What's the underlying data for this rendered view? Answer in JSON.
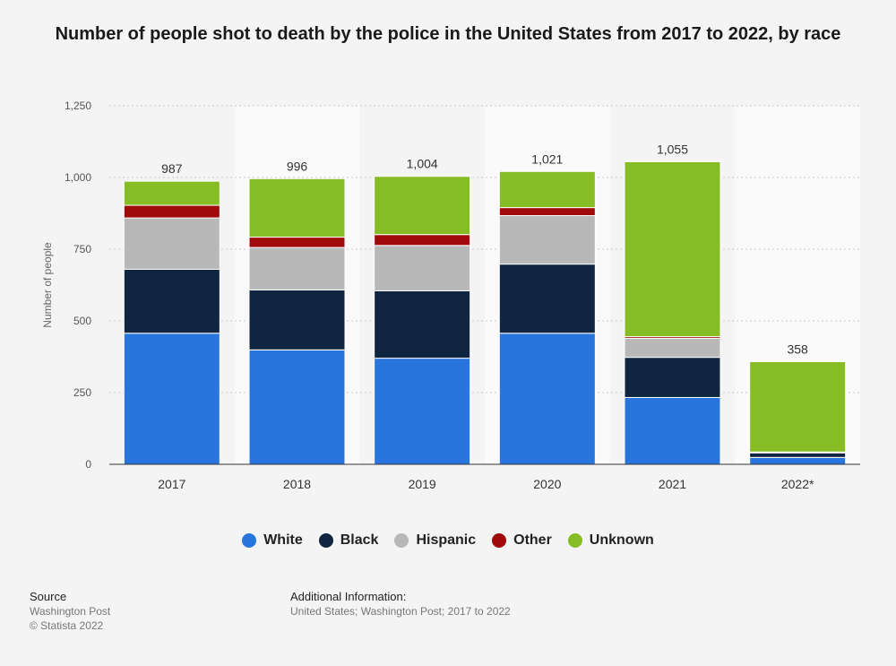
{
  "title": "Number of people shot to death by the police in the United States from 2017 to 2022, by race",
  "chart_data": {
    "type": "bar",
    "stacked": true,
    "title": "Number of people shot to death by the police in the United States from 2017 to 2022, by race",
    "xlabel": "",
    "ylabel": "Number of people",
    "ylim": [
      0,
      1250
    ],
    "yticks": [
      0,
      250,
      500,
      750,
      1000,
      1250
    ],
    "ytick_labels": [
      "0",
      "250",
      "500",
      "750",
      "1,000",
      "1,250"
    ],
    "grid": true,
    "legend_position": "bottom",
    "categories": [
      "2017",
      "2018",
      "2019",
      "2020",
      "2021",
      "2022*"
    ],
    "totals": [
      987,
      996,
      1004,
      1021,
      1055,
      358
    ],
    "total_labels": [
      "987",
      "996",
      "1,004",
      "1,021",
      "1,055",
      "358"
    ],
    "series": [
      {
        "name": "White",
        "color": "#2876dd",
        "values": [
          457,
          399,
          370,
          457,
          233,
          24
        ]
      },
      {
        "name": "Black",
        "color": "#10253f",
        "values": [
          223,
          209,
          235,
          241,
          140,
          16
        ]
      },
      {
        "name": "Hispanic",
        "color": "#b8b8b8",
        "values": [
          179,
          148,
          158,
          169,
          66,
          3
        ]
      },
      {
        "name": "Other",
        "color": "#a10a0a",
        "values": [
          44,
          36,
          38,
          28,
          6,
          0
        ]
      },
      {
        "name": "Unknown",
        "color": "#86bc24",
        "values": [
          84,
          204,
          203,
          126,
          610,
          315
        ]
      }
    ]
  },
  "footer": {
    "source_heading": "Source",
    "source_name": "Washington Post",
    "copyright": "© Statista 2022",
    "additional_heading": "Additional Information:",
    "additional_text": "United States; Washington Post; 2017 to 2022"
  }
}
